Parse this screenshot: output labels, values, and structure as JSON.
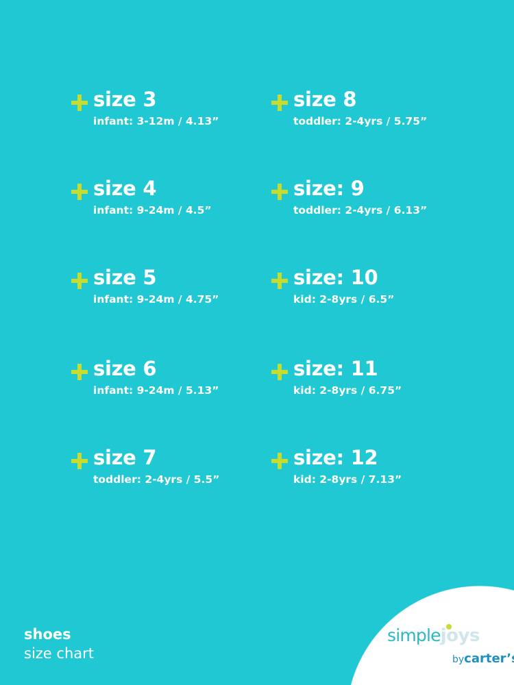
{
  "colors": {
    "background": "#1fc8d3",
    "plus": "#c6dc2e",
    "text": "#ffffff"
  },
  "sizes": [
    {
      "title": "size 3",
      "detail": "infant: 3-12m / 4.13”"
    },
    {
      "title": "size 4",
      "detail": "infant: 9-24m / 4.5”"
    },
    {
      "title": "size 5",
      "detail": "infant: 9-24m / 4.75”"
    },
    {
      "title": "size 6",
      "detail": "infant: 9-24m / 5.13”"
    },
    {
      "title": "size 7",
      "detail": "toddler: 2-4yrs / 5.5”"
    },
    {
      "title": "size 8",
      "detail": "toddler: 2-4yrs / 5.75”"
    },
    {
      "title": "size: 9",
      "detail": "toddler: 2-4yrs / 6.13”"
    },
    {
      "title": "size: 10",
      "detail": "kid: 2-8yrs / 6.5”"
    },
    {
      "title": "size: 11",
      "detail": "kid: 2-8yrs / 6.75”"
    },
    {
      "title": "size: 12",
      "detail": "kid: 2-8yrs / 7.13”"
    }
  ],
  "footer": {
    "line1": "shoes",
    "line2": "size chart"
  },
  "logo": {
    "word1": "simple",
    "word2": "joys",
    "by": "by",
    "brand": "carter’s"
  }
}
